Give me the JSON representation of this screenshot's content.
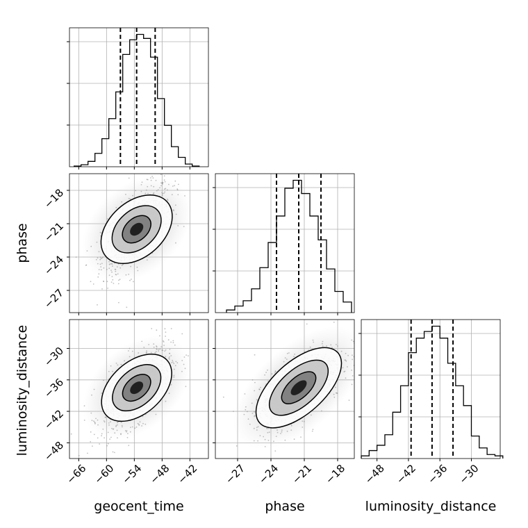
{
  "chart_data": {
    "type": "corner",
    "variables": [
      "geocent_time",
      "phase",
      "luminosity_distance"
    ],
    "axis_labels": {
      "geocent_time": "geocent_time",
      "phase": "phase",
      "luminosity_distance": "luminosity_distance"
    },
    "ranges": {
      "geocent_time": [
        -68,
        -38
      ],
      "phase": [
        -29,
        -16.5
      ],
      "luminosity_distance": [
        -51,
        -24.5
      ]
    },
    "ticks": {
      "geocent_time": [
        -66,
        -60,
        -54,
        -48,
        -42
      ],
      "phase": [
        -27,
        -24,
        -21,
        -18
      ],
      "luminosity_distance": [
        -48,
        -42,
        -36,
        -30
      ]
    },
    "tick_labels": {
      "geocent_time": [
        "−66",
        "−60",
        "−54",
        "−48",
        "−42"
      ],
      "phase": [
        "−27",
        "−24",
        "−21",
        "−18"
      ],
      "luminosity_distance": [
        "−48",
        "−42",
        "−36",
        "−30"
      ]
    },
    "quantiles": {
      "geocent_time": [
        -57,
        -53.5,
        -49.5
      ],
      "phase": [
        -23.5,
        -21.5,
        -19.5
      ],
      "luminosity_distance": [
        -41.5,
        -37.5,
        -33.5
      ]
    },
    "histograms": {
      "geocent_time": {
        "edges": [
          -67,
          -65.5,
          -64,
          -62.5,
          -61,
          -59.5,
          -58,
          -56.5,
          -55,
          -53.5,
          -52,
          -50.5,
          -49,
          -47.5,
          -46,
          -44.5,
          -43,
          -41.5,
          -40
        ],
        "counts": [
          0.5,
          1.5,
          4,
          10,
          21,
          36,
          56,
          84,
          95,
          99,
          96,
          82,
          51,
          31,
          15,
          7,
          2,
          0.5
        ]
      },
      "phase": {
        "edges": [
          -28,
          -27.25,
          -26.5,
          -25.75,
          -25,
          -24.25,
          -23.5,
          -22.75,
          -22,
          -21.25,
          -20.5,
          -19.75,
          -19,
          -18.25,
          -17.5,
          -16.75
        ],
        "counts": [
          2,
          5,
          9,
          18,
          34,
          53,
          73,
          94,
          100,
          90,
          73,
          55,
          33,
          16,
          8
        ]
      },
      "luminosity_distance": {
        "edges": [
          -51,
          -49.5,
          -48,
          -46.5,
          -45,
          -43.5,
          -42,
          -40.5,
          -39,
          -37.5,
          -36,
          -34.5,
          -33,
          -31.5,
          -30,
          -28.5,
          -27,
          -25.5,
          -24
        ],
        "counts": [
          2,
          6,
          10,
          18,
          35,
          55,
          80,
          91,
          96,
          100,
          91,
          72,
          55,
          40,
          17,
          8,
          3,
          2
        ]
      }
    },
    "contour_levels": 3,
    "grid": true
  }
}
